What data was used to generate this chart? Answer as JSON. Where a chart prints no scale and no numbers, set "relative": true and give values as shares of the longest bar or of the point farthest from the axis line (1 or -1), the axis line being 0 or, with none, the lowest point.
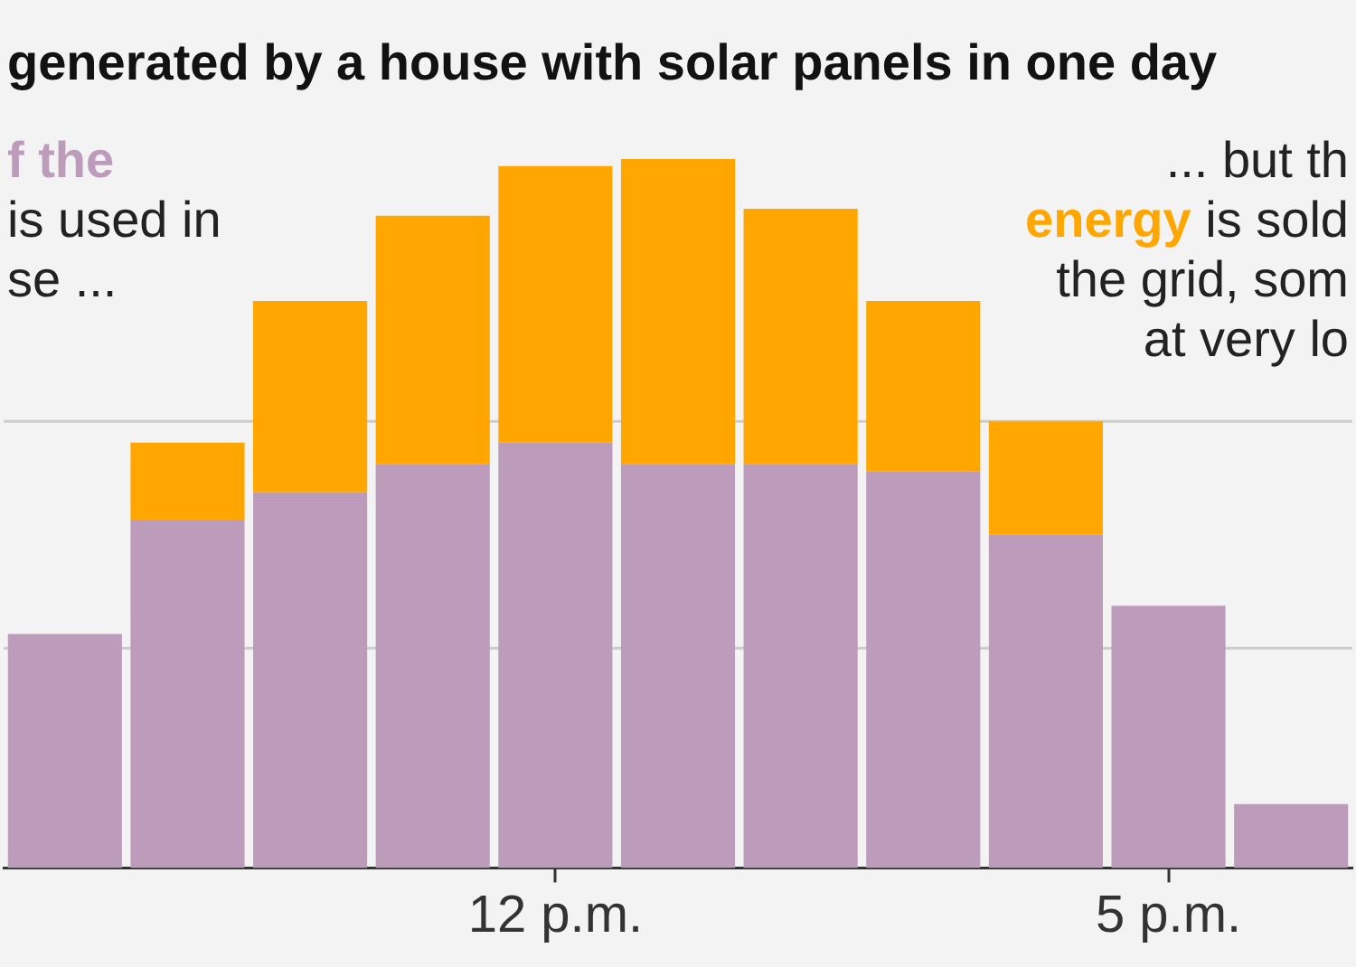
{
  "chart_data": {
    "type": "bar",
    "title": "generated by a house with solar panels in one day",
    "categories": [
      null,
      null,
      null,
      null,
      "12 p.m.",
      null,
      null,
      null,
      null,
      "5 p.m.",
      null
    ],
    "series": [
      {
        "color": "#bc9bbb",
        "values": [
          0.33,
          0.49,
          0.53,
          0.57,
          0.6,
          0.57,
          0.57,
          0.56,
          0.47,
          0.37,
          0.09
        ]
      },
      {
        "color": "#ffa700",
        "values": [
          0,
          0.11,
          0.27,
          0.35,
          0.39,
          0.43,
          0.36,
          0.24,
          0.16,
          0,
          0
        ]
      }
    ],
    "stacked": true,
    "relative": true,
    "ref_lines": [
      {
        "axis": "y",
        "value": 0.31,
        "color": "#cccccc"
      },
      {
        "axis": "y",
        "value": 0.63,
        "color": "#cccccc"
      }
    ],
    "annotations": [
      "f the",
      "is used in",
      "se ...",
      "... but th",
      "energy",
      "is sold",
      "the grid, som",
      "at very lo"
    ]
  }
}
